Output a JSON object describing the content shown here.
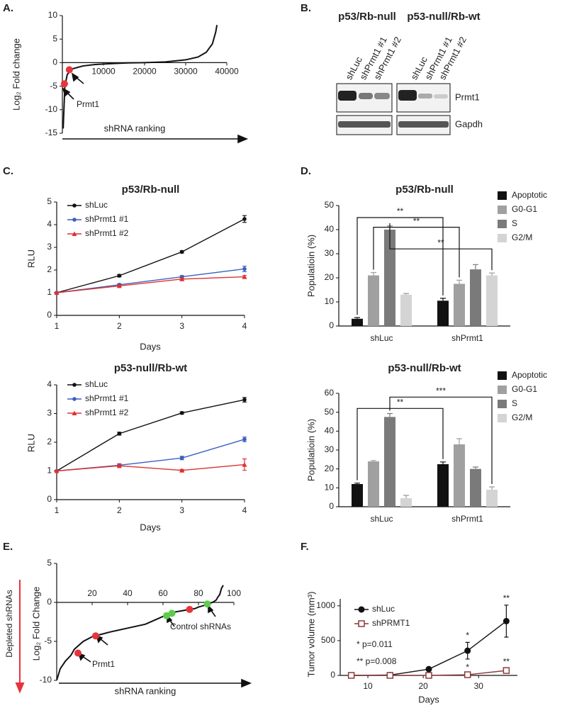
{
  "panel_labels": [
    "A.",
    "B.",
    "C.",
    "D.",
    "E.",
    "F."
  ],
  "blot": {
    "groups": [
      "p53/Rb-null",
      "p53-null/Rb-wt"
    ],
    "lanes": [
      "shLuc",
      "shPrmt1 #1",
      "shPrmt1 #2",
      "shLuc",
      "shPrmt1 #1",
      "shPrmt1 #2"
    ],
    "bands": [
      "Prmt1",
      "Gapdh"
    ]
  },
  "chart_data": [
    {
      "type": "line",
      "ylabel": "Log₂ Fold change",
      "xlabel": "shRNA ranking",
      "xlim": [
        0,
        40000
      ],
      "xticks": [
        10000,
        20000,
        30000,
        40000
      ],
      "ylim": [
        -15,
        10
      ],
      "yticks": [
        -15,
        -10,
        -5,
        0,
        5,
        10
      ],
      "x": [
        200,
        600,
        1200,
        2500,
        5000,
        8000,
        12000,
        16000,
        20000,
        25000,
        30000,
        33000,
        35000,
        36500,
        37300,
        37600
      ],
      "values": [
        -14,
        -5,
        -2.5,
        -1.3,
        -0.7,
        -0.4,
        -0.2,
        -0.05,
        0,
        0.15,
        0.6,
        1.2,
        2.2,
        4,
        6.5,
        8
      ],
      "color": "#111111",
      "highlights": [
        {
          "x": [
            500,
            1700
          ],
          "values": [
            -4.5,
            -1.5
          ],
          "color": "#e8333a"
        }
      ],
      "annotations": [
        {
          "text": "Prmt1",
          "color": "#222222"
        }
      ]
    },
    {
      "type": "line",
      "title": "p53/Rb-null",
      "xlabel": "Days",
      "ylabel": "RLU",
      "xlim": [
        1,
        4
      ],
      "xticks": [
        1,
        2,
        3,
        4
      ],
      "ylim": [
        0,
        5
      ],
      "yticks": [
        0,
        1,
        2,
        3,
        4,
        5
      ],
      "x": [
        1,
        2,
        3,
        4
      ],
      "series": [
        {
          "name": "shLuc",
          "color": "#111111",
          "marker": "circle",
          "values": [
            1,
            1.75,
            2.8,
            4.25
          ],
          "errors": [
            0,
            0.05,
            0.05,
            0.15
          ]
        },
        {
          "name": "shPrmt1 #1",
          "color": "#3a5fbf",
          "marker": "circle",
          "values": [
            1,
            1.35,
            1.7,
            2.05
          ],
          "errors": [
            0,
            0.05,
            0.05,
            0.12
          ]
        },
        {
          "name": "shPrmt1 #2",
          "color": "#e03030",
          "marker": "triangle",
          "values": [
            1,
            1.3,
            1.6,
            1.7
          ],
          "errors": [
            0,
            0.03,
            0.05,
            0.06
          ]
        }
      ]
    },
    {
      "type": "line",
      "title": "p53-null/Rb-wt",
      "xlabel": "Days",
      "ylabel": "RLU",
      "xlim": [
        1,
        4
      ],
      "xticks": [
        1,
        2,
        3,
        4
      ],
      "ylim": [
        0,
        4
      ],
      "yticks": [
        0,
        1,
        2,
        3,
        4
      ],
      "x": [
        1,
        2,
        3,
        4
      ],
      "series": [
        {
          "name": "shLuc",
          "color": "#111111",
          "marker": "circle",
          "values": [
            1,
            2.3,
            3.02,
            3.48
          ],
          "errors": [
            0,
            0.05,
            0.04,
            0.08
          ]
        },
        {
          "name": "shPrmt1 #1",
          "color": "#3a5fbf",
          "marker": "circle",
          "values": [
            1,
            1.2,
            1.45,
            2.1
          ],
          "errors": [
            0,
            0.05,
            0.06,
            0.08
          ]
        },
        {
          "name": "shPrmt1 #2",
          "color": "#e03030",
          "marker": "triangle",
          "values": [
            1,
            1.18,
            1.02,
            1.22
          ],
          "errors": [
            0,
            0.06,
            0.03,
            0.2
          ]
        }
      ]
    },
    {
      "type": "bar",
      "title": "p53/Rb-null",
      "ylabel": "Populatioin (%)",
      "categories": [
        "shLuc",
        "shPrmt1"
      ],
      "ylim": [
        0,
        50
      ],
      "yticks": [
        0,
        10,
        20,
        30,
        40,
        50
      ],
      "series": [
        {
          "name": "Apoptotic",
          "color": "#111111",
          "values": [
            3,
            10.5
          ],
          "errors": [
            0.5,
            1
          ]
        },
        {
          "name": "G0-G1",
          "color": "#a0a0a0",
          "values": [
            21,
            17.5
          ],
          "errors": [
            1.2,
            1.5
          ]
        },
        {
          "name": "S",
          "color": "#7a7a7a",
          "values": [
            40,
            23.5
          ],
          "errors": [
            1.5,
            2
          ]
        },
        {
          "name": "G2/M",
          "color": "#d4d4d4",
          "values": [
            13,
            21
          ],
          "errors": [
            0.5,
            1
          ]
        }
      ],
      "significance": [
        "**",
        "**",
        "**"
      ]
    },
    {
      "type": "bar",
      "title": "p53-null/Rb-wt",
      "ylabel": "Populatioin (%)",
      "categories": [
        "shLuc",
        "shPrmt1"
      ],
      "ylim": [
        0,
        60
      ],
      "yticks": [
        0,
        10,
        20,
        30,
        40,
        50,
        60
      ],
      "series": [
        {
          "name": "Apoptotic",
          "color": "#111111",
          "values": [
            12,
            22.5
          ],
          "errors": [
            0.5,
            1.2
          ]
        },
        {
          "name": "G0-G1",
          "color": "#a0a0a0",
          "values": [
            24,
            33
          ],
          "errors": [
            0.5,
            3
          ]
        },
        {
          "name": "S",
          "color": "#7a7a7a",
          "values": [
            47.5,
            20
          ],
          "errors": [
            1.8,
            1
          ]
        },
        {
          "name": "G2/M",
          "color": "#d4d4d4",
          "values": [
            4.5,
            9
          ],
          "errors": [
            1.5,
            1.5
          ]
        }
      ],
      "significance": [
        "**",
        "***"
      ]
    },
    {
      "type": "line",
      "ylabel": "Log₂ Fold Change",
      "xlabel": "shRNA ranking",
      "xlim": [
        0,
        100
      ],
      "xticks": [
        20,
        40,
        60,
        80,
        100
      ],
      "ylim": [
        -10,
        5
      ],
      "yticks": [
        -10,
        -5,
        0,
        5
      ],
      "x": [
        0,
        2,
        5,
        8,
        10,
        15,
        20,
        25,
        30,
        40,
        50,
        55,
        60,
        62,
        65,
        70,
        75,
        78,
        80,
        83,
        85,
        88,
        90,
        91,
        92,
        93,
        94
      ],
      "values": [
        -10,
        -8.5,
        -7.5,
        -6.8,
        -6,
        -5,
        -4.4,
        -4.1,
        -3.8,
        -3.3,
        -2.8,
        -2.3,
        -1.8,
        -1.6,
        -1.3,
        -1.1,
        -0.9,
        -0.8,
        -0.6,
        -0.4,
        -0.2,
        0,
        0.3,
        0.7,
        1,
        1.8,
        2.2
      ],
      "color": "#111111",
      "highlights": [
        {
          "x": [
            12,
            22,
            75
          ],
          "values": [
            -6.5,
            -4.3,
            -0.9
          ],
          "color": "#e8333a"
        },
        {
          "x": [
            62,
            65,
            85
          ],
          "values": [
            -1.7,
            -1.4,
            -0.2
          ],
          "color": "#5ccc4a"
        }
      ],
      "annotations": [
        {
          "text": "Prmt1",
          "color": "#e8333a"
        },
        {
          "text": "Control shRNAs",
          "color": "#3cb93c"
        },
        {
          "text": "Depleted shRNAs",
          "color": "#e8333a"
        }
      ]
    },
    {
      "type": "line",
      "xlabel": "Days",
      "ylabel": "Tumor volume (mm³)",
      "xlim": [
        5,
        37
      ],
      "xticks": [
        10,
        20,
        30
      ],
      "ylim": [
        0,
        1100
      ],
      "yticks": [
        0,
        500,
        1000
      ],
      "x": [
        7,
        14,
        21,
        28,
        35
      ],
      "series": [
        {
          "name": "shLuc",
          "color": "#111111",
          "marker": "circle",
          "values": [
            0,
            5,
            90,
            355,
            780
          ],
          "errors": [
            0,
            5,
            10,
            120,
            230
          ],
          "point_labels": [
            null,
            null,
            null,
            "*",
            "**"
          ]
        },
        {
          "name": "shPRMT1",
          "color": "#8b3a3a",
          "marker": "square-open",
          "values": [
            0,
            0,
            0,
            10,
            70
          ],
          "errors": [
            0,
            0,
            0,
            5,
            30
          ],
          "point_labels": [
            null,
            null,
            null,
            "*",
            "**"
          ]
        }
      ],
      "annotations": [
        {
          "text": "* p=0.011",
          "color": "#222222"
        },
        {
          "text": "** p=0.008",
          "color": "#222222"
        }
      ]
    }
  ]
}
